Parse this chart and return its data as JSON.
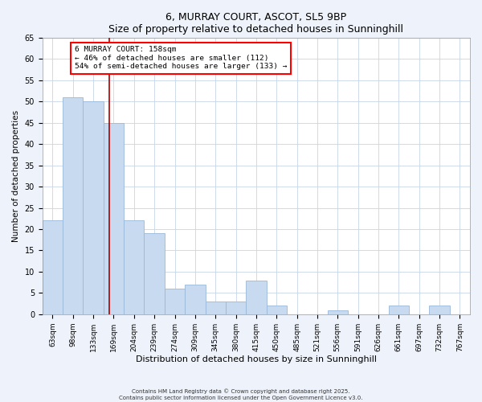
{
  "title1": "6, MURRAY COURT, ASCOT, SL5 9BP",
  "title2": "Size of property relative to detached houses in Sunninghill",
  "xlabel": "Distribution of detached houses by size in Sunninghill",
  "ylabel": "Number of detached properties",
  "bar_labels": [
    "63sqm",
    "98sqm",
    "133sqm",
    "169sqm",
    "204sqm",
    "239sqm",
    "274sqm",
    "309sqm",
    "345sqm",
    "380sqm",
    "415sqm",
    "450sqm",
    "485sqm",
    "521sqm",
    "556sqm",
    "591sqm",
    "626sqm",
    "661sqm",
    "697sqm",
    "732sqm",
    "767sqm"
  ],
  "bar_values": [
    22,
    51,
    50,
    45,
    22,
    19,
    6,
    7,
    3,
    3,
    8,
    2,
    0,
    0,
    1,
    0,
    0,
    2,
    0,
    2,
    0
  ],
  "bar_color": "#c8daf0",
  "bar_edge_color": "#9ab8d8",
  "vline_color": "#aa0000",
  "vline_x": 2.78,
  "ylim": [
    0,
    65
  ],
  "yticks": [
    0,
    5,
    10,
    15,
    20,
    25,
    30,
    35,
    40,
    45,
    50,
    55,
    60,
    65
  ],
  "annotation_title": "6 MURRAY COURT: 158sqm",
  "annotation_line1": "← 46% of detached houses are smaller (112)",
  "annotation_line2": "54% of semi-detached houses are larger (133) →",
  "footer1": "Contains HM Land Registry data © Crown copyright and database right 2025.",
  "footer2": "Contains public sector information licensed under the Open Government Licence v3.0.",
  "bg_color": "#eef2fa",
  "plot_bg_color": "#ffffff",
  "grid_color": "#c8d4e8"
}
